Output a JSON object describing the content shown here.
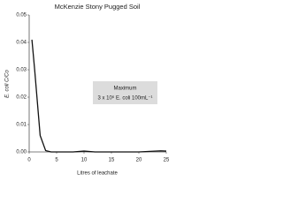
{
  "chart_data": {
    "type": "line",
    "title": "McKenzie Stony Pugged Soil",
    "x_label": "Litres of leachate",
    "y_label": "E. coli C/Co",
    "annotation": [
      "Maximum",
      "3 x 10⁶ E. coli 100mL⁻¹"
    ],
    "x": [
      0.5,
      1,
      2,
      3,
      4,
      6,
      8,
      10,
      12,
      15,
      18,
      20,
      22,
      24,
      25
    ],
    "series": [
      {
        "name": "E. coli",
        "color": "#111111",
        "values": [
          0.041,
          0.03,
          0.006,
          0.0005,
          0,
          0,
          0,
          0.0003,
          0,
          0,
          0,
          0,
          0.0002,
          0.0004,
          0.0003
        ]
      }
    ],
    "xlim": [
      0,
      25
    ],
    "xticks": [
      0,
      5,
      10,
      15,
      20,
      25
    ],
    "ylim": [
      0,
      0.05
    ],
    "yticks": [
      {
        "value": 0,
        "label": "0.00"
      },
      {
        "value": 0.01,
        "label": "0.01"
      },
      {
        "value": 0.02,
        "label": "0.02"
      },
      {
        "value": 0.03,
        "label": "0.03"
      },
      {
        "value": 0.04,
        "label": "0.04"
      },
      {
        "value": 0.05,
        "label": "0.05"
      }
    ],
    "grid": false
  }
}
